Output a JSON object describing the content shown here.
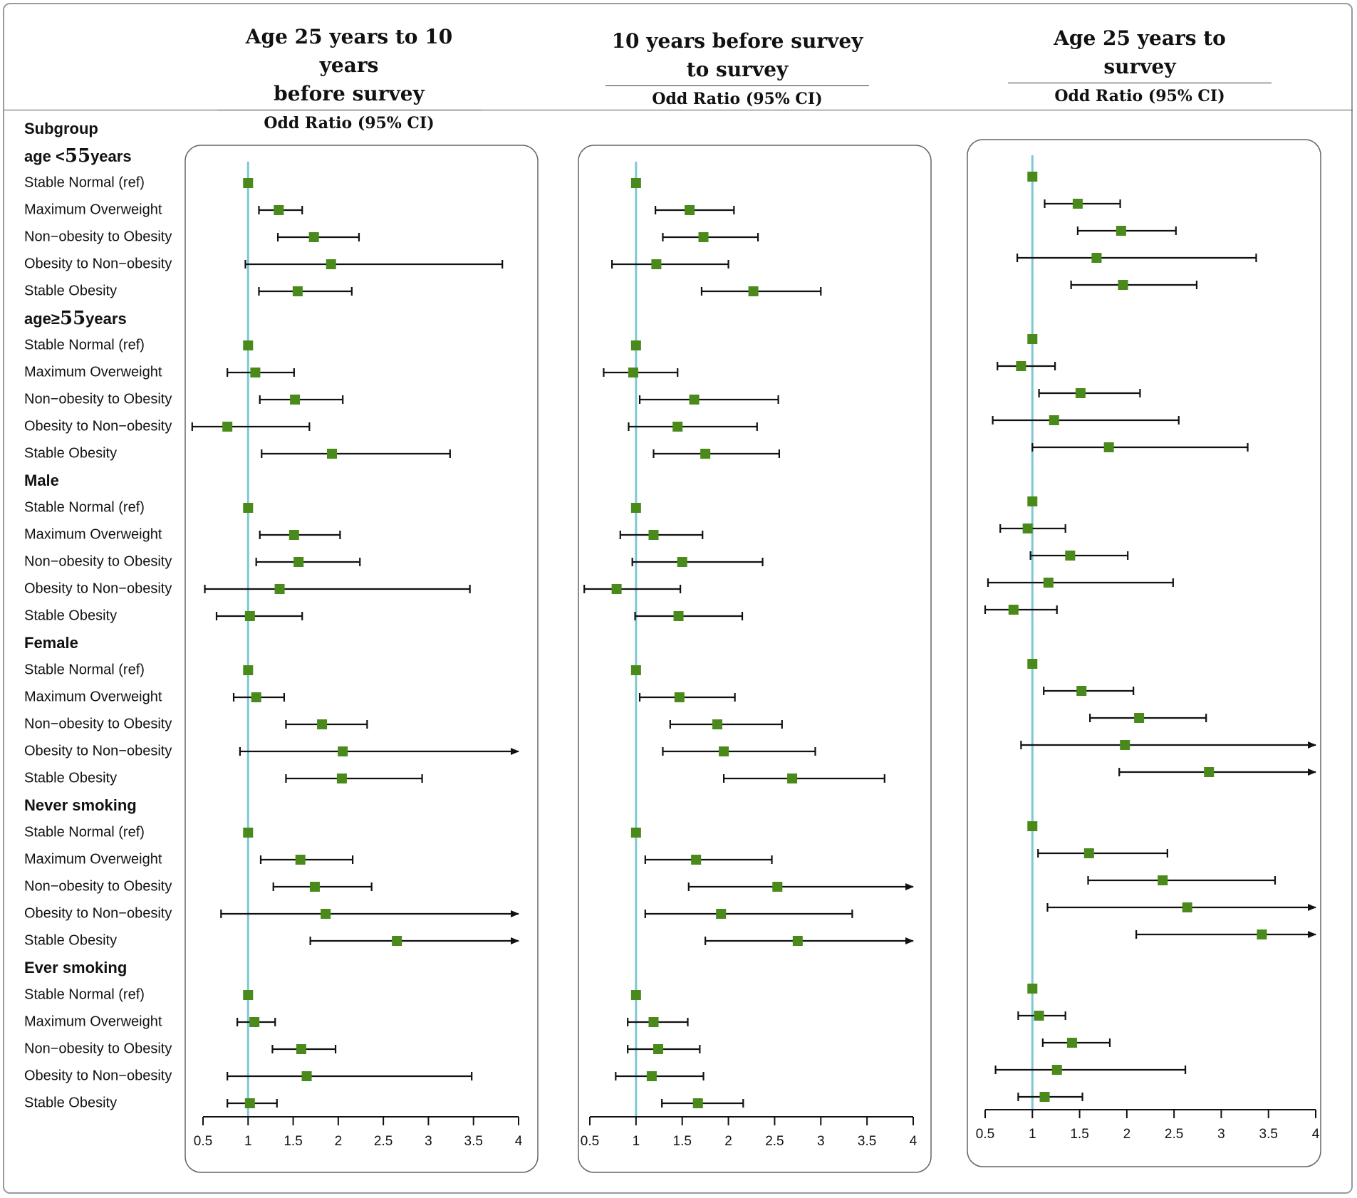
{
  "chart_data": {
    "type": "forest",
    "subgroup_header": "Subgroup",
    "x_ticks": [
      "0.5",
      "1",
      "1.5",
      "2",
      "2.5",
      "3",
      "3.5",
      "4"
    ],
    "xlim": [
      0.5,
      4
    ],
    "reference_line": 1,
    "colors": {
      "point": "#4a8a1a",
      "ref_line": "#7ec8d2",
      "ci": "#111111",
      "panel_border": "#666666"
    },
    "groups": [
      {
        "label": "age <55years",
        "label_prefix": "age <",
        "label_num": "55",
        "label_suffix": "years",
        "rows": [
          "Stable Normal (ref)",
          "Maximum Overweight",
          "Non−obesity to Obesity",
          "Obesity to Non−obesity",
          "Stable Obesity"
        ]
      },
      {
        "label": "age≥55years",
        "label_prefix": "age≥",
        "label_num": "55",
        "label_suffix": "years",
        "rows": [
          "Stable Normal (ref)",
          "Maximum Overweight",
          "Non−obesity to Obesity",
          "Obesity to Non−obesity",
          "Stable Obesity"
        ]
      },
      {
        "label": "Male",
        "rows": [
          "Stable Normal (ref)",
          "Maximum Overweight",
          "Non−obesity to Obesity",
          "Obesity to Non−obesity",
          "Stable Obesity"
        ]
      },
      {
        "label": "Female",
        "rows": [
          "Stable Normal (ref)",
          "Maximum Overweight",
          "Non−obesity to Obesity",
          "Obesity to Non−obesity",
          "Stable Obesity"
        ]
      },
      {
        "label": "Never smoking",
        "rows": [
          "Stable Normal (ref)",
          "Maximum Overweight",
          "Non−obesity to Obesity",
          "Obesity to Non−obesity",
          "Stable Obesity"
        ]
      },
      {
        "label": "Ever smoking",
        "rows": [
          "Stable Normal (ref)",
          "Maximum Overweight",
          "Non−obesity to Obesity",
          "Obesity to Non−obesity",
          "Stable Obesity"
        ]
      }
    ],
    "panels": [
      {
        "title_line1": "Age 25 years to 10 years",
        "title_line2": "before survey",
        "subtitle": "Odd Ratio (95% CI)",
        "estimates": [
          [
            [
              1,
              1,
              1
            ],
            [
              1.34,
              1.12,
              1.6
            ],
            [
              1.73,
              1.33,
              2.23
            ],
            [
              1.92,
              0.97,
              3.82
            ],
            [
              1.55,
              1.12,
              2.15
            ]
          ],
          [
            [
              1,
              1,
              1
            ],
            [
              1.08,
              0.77,
              1.51
            ],
            [
              1.52,
              1.13,
              2.05
            ],
            [
              0.77,
              0.38,
              1.68
            ],
            [
              1.93,
              1.15,
              3.24
            ]
          ],
          [
            [
              1,
              1,
              1
            ],
            [
              1.51,
              1.13,
              2.02
            ],
            [
              1.56,
              1.09,
              2.24
            ],
            [
              1.35,
              0.52,
              3.46
            ],
            [
              1.02,
              0.65,
              1.6
            ]
          ],
          [
            [
              1,
              1,
              1
            ],
            [
              1.09,
              0.84,
              1.4
            ],
            [
              1.82,
              1.42,
              2.32
            ],
            [
              2.05,
              0.91,
              4,
              "arrow"
            ],
            [
              2.04,
              1.42,
              2.93
            ]
          ],
          [
            [
              1,
              1,
              1
            ],
            [
              1.58,
              1.14,
              2.16
            ],
            [
              1.74,
              1.28,
              2.37
            ],
            [
              1.86,
              0.7,
              4,
              "arrow"
            ],
            [
              2.65,
              1.69,
              4,
              "arrow"
            ]
          ],
          [
            [
              1,
              1,
              1
            ],
            [
              1.07,
              0.88,
              1.3
            ],
            [
              1.59,
              1.27,
              1.97
            ],
            [
              1.65,
              0.77,
              3.48
            ],
            [
              1.02,
              0.77,
              1.32
            ]
          ]
        ]
      },
      {
        "title_line1": "10 years before survey",
        "title_line2": "to survey",
        "subtitle": "Odd Ratio (95% CI)",
        "estimates": [
          [
            [
              1,
              1,
              1
            ],
            [
              1.58,
              1.21,
              2.06
            ],
            [
              1.73,
              1.29,
              2.32
            ],
            [
              1.22,
              0.74,
              2.0
            ],
            [
              2.27,
              1.71,
              3.0
            ]
          ],
          [
            [
              1,
              1,
              1
            ],
            [
              0.97,
              0.65,
              1.45
            ],
            [
              1.63,
              1.04,
              2.54
            ],
            [
              1.45,
              0.92,
              2.31
            ],
            [
              1.75,
              1.19,
              2.55
            ]
          ],
          [
            [
              1,
              1,
              1
            ],
            [
              1.19,
              0.83,
              1.72
            ],
            [
              1.5,
              0.96,
              2.37
            ],
            [
              0.79,
              0.44,
              1.48
            ],
            [
              1.46,
              0.99,
              2.15
            ]
          ],
          [
            [
              1,
              1,
              1
            ],
            [
              1.47,
              1.04,
              2.07
            ],
            [
              1.88,
              1.37,
              2.58
            ],
            [
              1.95,
              1.29,
              2.94
            ],
            [
              2.69,
              1.95,
              3.69
            ]
          ],
          [
            [
              1,
              1,
              1
            ],
            [
              1.65,
              1.1,
              2.47
            ],
            [
              2.53,
              1.57,
              4,
              "arrow"
            ],
            [
              1.92,
              1.1,
              3.34
            ],
            [
              2.75,
              1.75,
              4,
              "arrow"
            ]
          ],
          [
            [
              1,
              1,
              1
            ],
            [
              1.19,
              0.91,
              1.56
            ],
            [
              1.24,
              0.91,
              1.69
            ],
            [
              1.17,
              0.78,
              1.73
            ],
            [
              1.67,
              1.28,
              2.16
            ]
          ]
        ]
      },
      {
        "title_line1": "Age 25 years to",
        "title_line2": "survey",
        "subtitle": "Odd Ratio (95% CI)",
        "estimates": [
          [
            [
              1,
              1,
              1
            ],
            [
              1.48,
              1.13,
              1.93
            ],
            [
              1.94,
              1.48,
              2.52
            ],
            [
              1.68,
              0.84,
              3.37
            ],
            [
              1.96,
              1.41,
              2.74
            ]
          ],
          [
            [
              1,
              1,
              1
            ],
            [
              0.88,
              0.63,
              1.24
            ],
            [
              1.51,
              1.07,
              2.14
            ],
            [
              1.23,
              0.58,
              2.55
            ],
            [
              1.81,
              1.0,
              3.28
            ]
          ],
          [
            [
              1,
              1,
              1
            ],
            [
              0.95,
              0.66,
              1.35
            ],
            [
              1.4,
              0.98,
              2.01
            ],
            [
              1.17,
              0.53,
              2.49
            ],
            [
              0.8,
              0.5,
              1.26
            ]
          ],
          [
            [
              1,
              1,
              1
            ],
            [
              1.52,
              1.12,
              2.07
            ],
            [
              2.13,
              1.61,
              2.84
            ],
            [
              1.98,
              0.88,
              4,
              "arrow"
            ],
            [
              2.87,
              1.92,
              4,
              "arrow"
            ]
          ],
          [
            [
              1,
              1,
              1
            ],
            [
              1.6,
              1.06,
              2.43
            ],
            [
              2.38,
              1.59,
              3.57
            ],
            [
              2.64,
              1.16,
              4,
              "arrow"
            ],
            [
              3.43,
              2.1,
              4,
              "arrow"
            ]
          ],
          [
            [
              1,
              1,
              1
            ],
            [
              1.07,
              0.85,
              1.35
            ],
            [
              1.42,
              1.11,
              1.82
            ],
            [
              1.26,
              0.61,
              2.62
            ],
            [
              1.13,
              0.85,
              1.53
            ]
          ]
        ]
      }
    ]
  }
}
